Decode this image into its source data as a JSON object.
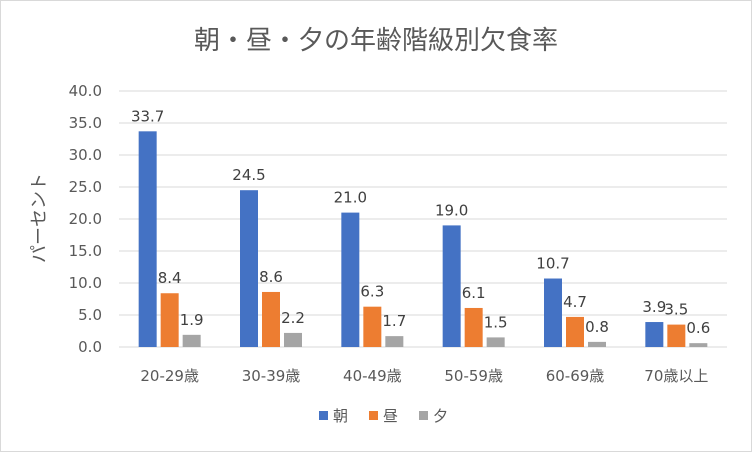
{
  "chart_data": {
    "type": "bar",
    "title": "朝・昼・夕の年齢階級別欠食率",
    "xlabel": "",
    "ylabel": "パーセント",
    "ylim": [
      0,
      40
    ],
    "yticks": [
      "0.0",
      "5.0",
      "10.0",
      "15.0",
      "20.0",
      "25.0",
      "30.0",
      "35.0",
      "40.0"
    ],
    "grid": true,
    "legend_position": "bottom",
    "categories": [
      "20-29歳",
      "30-39歳",
      "40-49歳",
      "50-59歳",
      "60-69歳",
      "70歳以上"
    ],
    "series": [
      {
        "name": "朝",
        "color": "#4472c4",
        "values": [
          33.7,
          24.5,
          21.0,
          19.0,
          10.7,
          3.9
        ],
        "labels": [
          "33.7",
          "24.5",
          "21.0",
          "19.0",
          "10.7",
          "3.9"
        ]
      },
      {
        "name": "昼",
        "color": "#ed7d31",
        "values": [
          8.4,
          8.6,
          6.3,
          6.1,
          4.7,
          3.5
        ],
        "labels": [
          "8.4",
          "8.6",
          "6.3",
          "6.1",
          "4.7",
          "3.5"
        ]
      },
      {
        "name": "夕",
        "color": "#a5a5a5",
        "values": [
          1.9,
          2.2,
          1.7,
          1.5,
          0.8,
          0.6
        ],
        "labels": [
          "1.9",
          "2.2",
          "1.7",
          "1.5",
          "0.8",
          "0.6"
        ]
      }
    ]
  }
}
